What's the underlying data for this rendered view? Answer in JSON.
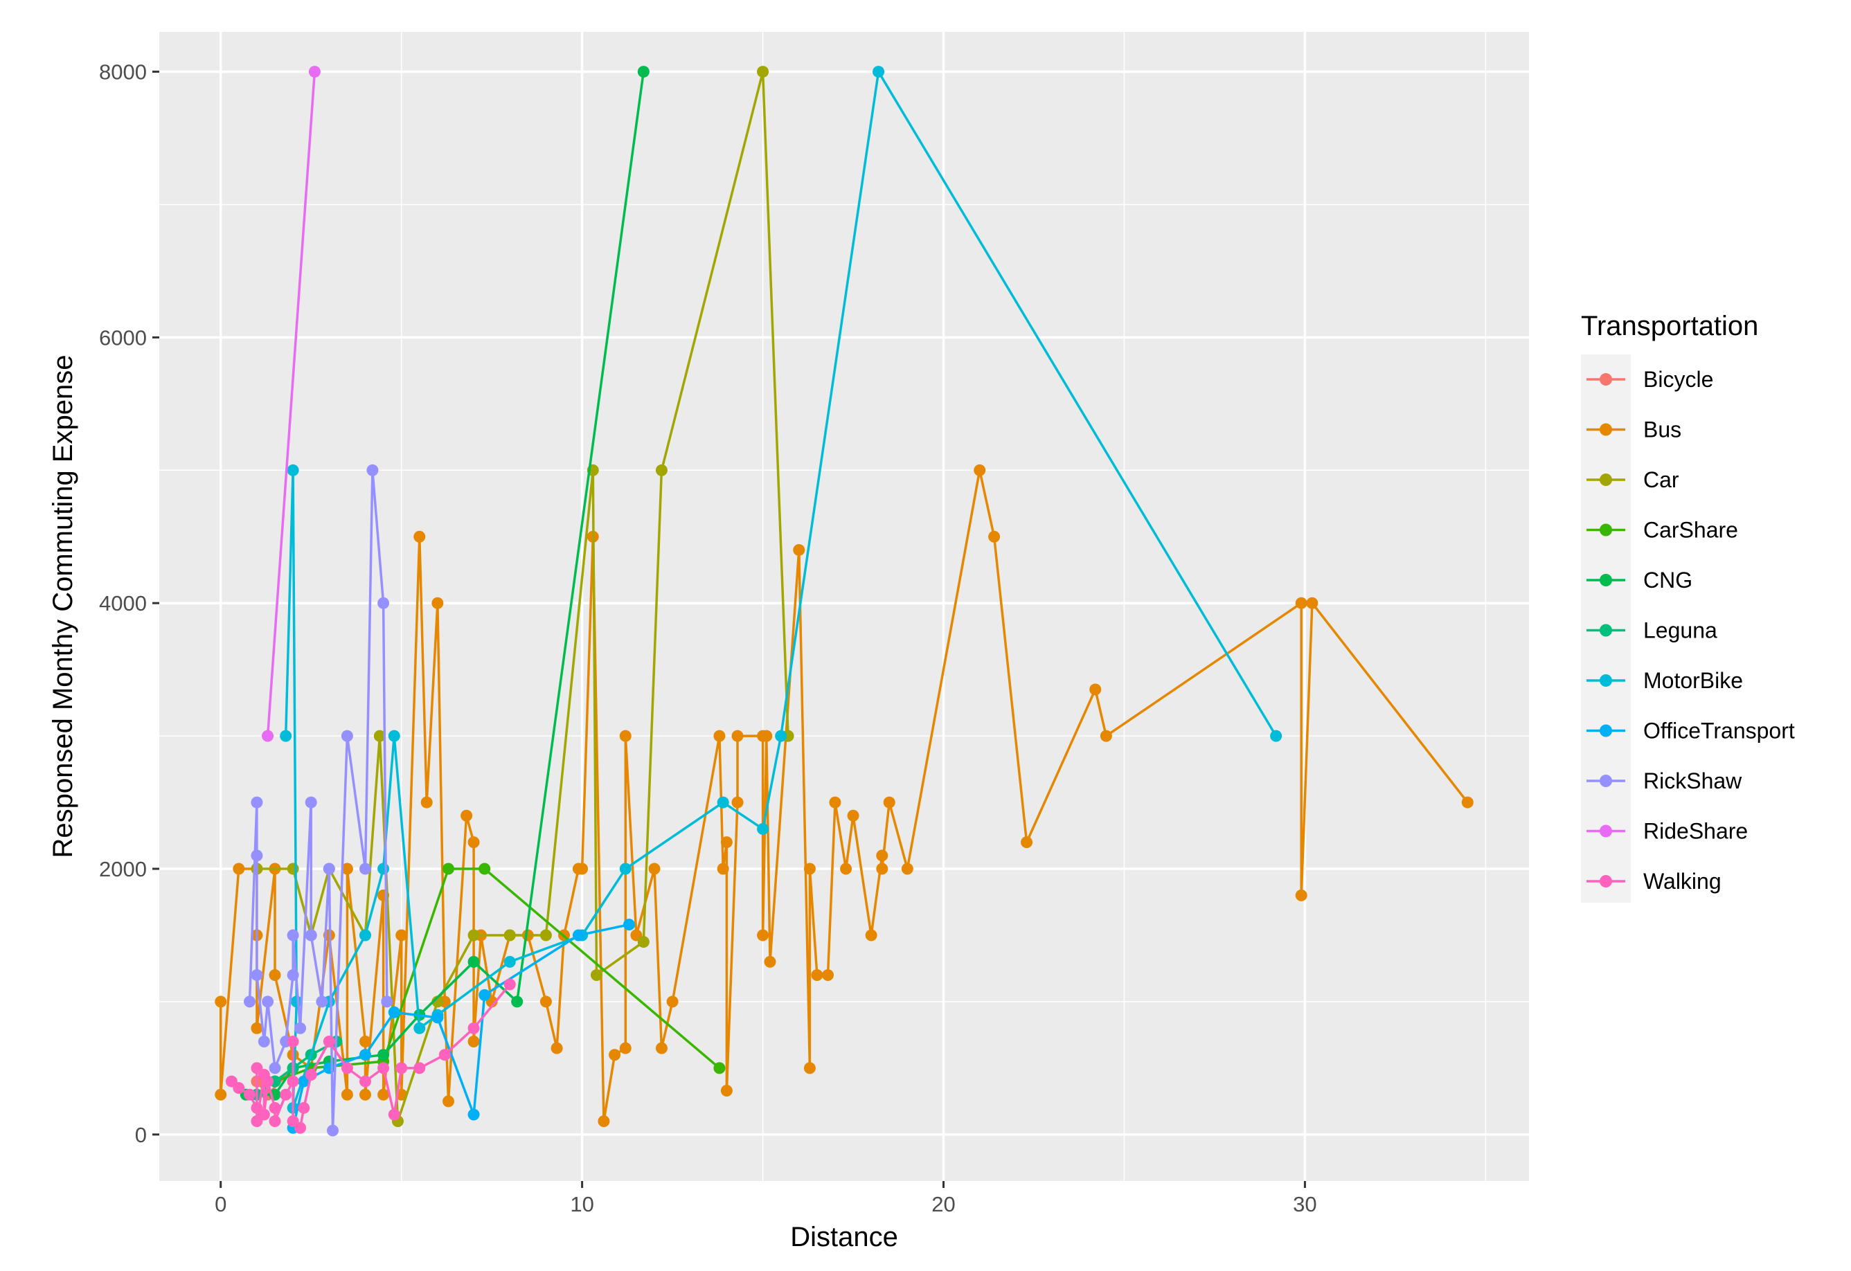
{
  "chart_data": {
    "type": "line",
    "title": "",
    "xlabel": "Distance",
    "ylabel": "Responsed Monthy Commuting Expense",
    "xlim": [
      -1.7,
      36.2
    ],
    "ylim": [
      -350,
      8300
    ],
    "x_ticks": [
      0,
      10,
      20,
      30
    ],
    "x_tick_labels": [
      "0",
      "10",
      "20",
      "30"
    ],
    "y_ticks": [
      0,
      2000,
      4000,
      6000,
      8000
    ],
    "y_tick_labels": [
      "0",
      "2000",
      "4000",
      "6000",
      "8000"
    ],
    "grid": true,
    "legend": {
      "title": "Transportation",
      "position": "right"
    },
    "series": [
      {
        "name": "Bicycle",
        "color": "#F8766D",
        "points": [
          [
            1.0,
            400
          ],
          [
            1.3,
            300
          ],
          [
            2.0,
            500
          ]
        ]
      },
      {
        "name": "Bus",
        "color": "#E58700",
        "points": [
          [
            0.0,
            1000
          ],
          [
            0.0,
            300
          ],
          [
            0.5,
            2000
          ],
          [
            1.0,
            2000
          ],
          [
            1.0,
            1500
          ],
          [
            1.0,
            800
          ],
          [
            1.5,
            2000
          ],
          [
            1.5,
            1200
          ],
          [
            2.0,
            600
          ],
          [
            2.5,
            500
          ],
          [
            3.0,
            1500
          ],
          [
            3.5,
            300
          ],
          [
            3.5,
            2000
          ],
          [
            4.0,
            700
          ],
          [
            4.0,
            300
          ],
          [
            4.5,
            1800
          ],
          [
            4.5,
            300
          ],
          [
            5.0,
            1500
          ],
          [
            5.0,
            300
          ],
          [
            5.5,
            4500
          ],
          [
            5.7,
            2500
          ],
          [
            6.0,
            4000
          ],
          [
            6.2,
            1000
          ],
          [
            6.3,
            250
          ],
          [
            6.8,
            2400
          ],
          [
            7.0,
            2200
          ],
          [
            7.0,
            700
          ],
          [
            7.2,
            1500
          ],
          [
            7.5,
            1000
          ],
          [
            8.0,
            1500
          ],
          [
            8.5,
            1500
          ],
          [
            9.0,
            1000
          ],
          [
            9.3,
            650
          ],
          [
            9.5,
            1500
          ],
          [
            9.9,
            2000
          ],
          [
            10.0,
            2000
          ],
          [
            10.3,
            4500
          ],
          [
            10.6,
            100
          ],
          [
            10.9,
            600
          ],
          [
            11.2,
            650
          ],
          [
            11.2,
            3000
          ],
          [
            11.5,
            1500
          ],
          [
            12.0,
            2000
          ],
          [
            12.2,
            650
          ],
          [
            12.5,
            1000
          ],
          [
            13.8,
            3000
          ],
          [
            13.9,
            2000
          ],
          [
            14.0,
            2200
          ],
          [
            14.0,
            330
          ],
          [
            14.3,
            2500
          ],
          [
            14.3,
            3000
          ],
          [
            15.0,
            3000
          ],
          [
            15.0,
            1500
          ],
          [
            15.1,
            3000
          ],
          [
            15.2,
            1300
          ],
          [
            16.0,
            4400
          ],
          [
            16.3,
            500
          ],
          [
            16.3,
            2000
          ],
          [
            16.5,
            1200
          ],
          [
            16.8,
            1200
          ],
          [
            17.0,
            2500
          ],
          [
            17.3,
            2000
          ],
          [
            17.5,
            2400
          ],
          [
            18.0,
            1500
          ],
          [
            18.3,
            2100
          ],
          [
            18.3,
            2000
          ],
          [
            18.5,
            2500
          ],
          [
            19.0,
            2000
          ],
          [
            21.0,
            5000
          ],
          [
            21.4,
            4500
          ],
          [
            22.3,
            2200
          ],
          [
            24.2,
            3350
          ],
          [
            24.5,
            3000
          ],
          [
            29.9,
            4000
          ],
          [
            29.9,
            1800
          ],
          [
            30.2,
            4000
          ],
          [
            34.5,
            2500
          ]
        ]
      },
      {
        "name": "Car",
        "color": "#A3A500",
        "points": [
          [
            1.0,
            2000
          ],
          [
            2.0,
            2000
          ],
          [
            2.5,
            1500
          ],
          [
            3.0,
            2000
          ],
          [
            4.0,
            1500
          ],
          [
            4.4,
            3000
          ],
          [
            4.9,
            100
          ],
          [
            6.0,
            1000
          ],
          [
            7.0,
            1500
          ],
          [
            8.0,
            1500
          ],
          [
            9.0,
            1500
          ],
          [
            10.3,
            5000
          ],
          [
            10.4,
            1200
          ],
          [
            11.7,
            1450
          ],
          [
            12.2,
            5000
          ],
          [
            15.0,
            8000
          ],
          [
            15.7,
            3000
          ]
        ]
      },
      {
        "name": "CarShare",
        "color": "#39B600",
        "points": [
          [
            1.5,
            400
          ],
          [
            2.5,
            500
          ],
          [
            4.5,
            550
          ],
          [
            6.3,
            2000
          ],
          [
            7.3,
            2000
          ],
          [
            13.8,
            500
          ]
        ]
      },
      {
        "name": "CNG",
        "color": "#00BB4E",
        "points": [
          [
            0.7,
            300
          ],
          [
            1.5,
            300
          ],
          [
            2.0,
            500
          ],
          [
            3.0,
            550
          ],
          [
            4.5,
            600
          ],
          [
            5.5,
            900
          ],
          [
            7.0,
            1300
          ],
          [
            8.2,
            1000
          ],
          [
            11.7,
            8000
          ]
        ]
      },
      {
        "name": "Leguna",
        "color": "#00BF7D",
        "points": [
          [
            1.0,
            300
          ],
          [
            1.5,
            400
          ],
          [
            2.0,
            500
          ],
          [
            2.5,
            600
          ],
          [
            3.2,
            700
          ]
        ]
      },
      {
        "name": "MotorBike",
        "color": "#00BCD8",
        "points": [
          [
            1.8,
            3000
          ],
          [
            2.0,
            5000
          ],
          [
            2.1,
            1000
          ],
          [
            2.0,
            200
          ],
          [
            3.0,
            1000
          ],
          [
            4.0,
            1500
          ],
          [
            4.5,
            2000
          ],
          [
            4.8,
            3000
          ],
          [
            5.5,
            800
          ],
          [
            6.0,
            900
          ],
          [
            8.0,
            1300
          ],
          [
            10.0,
            1500
          ],
          [
            11.2,
            2000
          ],
          [
            13.9,
            2500
          ],
          [
            15.0,
            2300
          ],
          [
            15.5,
            3000
          ],
          [
            18.2,
            8000
          ],
          [
            29.2,
            3000
          ]
        ]
      },
      {
        "name": "OfficeTransport",
        "color": "#00B0F6",
        "points": [
          [
            2.0,
            50
          ],
          [
            2.3,
            400
          ],
          [
            3.0,
            500
          ],
          [
            4.0,
            600
          ],
          [
            4.8,
            920
          ],
          [
            6.0,
            880
          ],
          [
            7.0,
            150
          ],
          [
            7.3,
            1050
          ],
          [
            9.9,
            1500
          ],
          [
            11.3,
            1580
          ]
        ]
      },
      {
        "name": "RickShaw",
        "color": "#9590FF",
        "points": [
          [
            0.8,
            1000
          ],
          [
            1.0,
            2500
          ],
          [
            1.0,
            2100
          ],
          [
            1.0,
            1200
          ],
          [
            1.2,
            700
          ],
          [
            1.3,
            1000
          ],
          [
            1.5,
            500
          ],
          [
            1.8,
            700
          ],
          [
            2.0,
            1200
          ],
          [
            2.0,
            1500
          ],
          [
            2.2,
            800
          ],
          [
            2.5,
            2500
          ],
          [
            2.5,
            1500
          ],
          [
            2.8,
            1000
          ],
          [
            3.0,
            2000
          ],
          [
            3.1,
            30
          ],
          [
            3.5,
            3000
          ],
          [
            4.0,
            2000
          ],
          [
            4.2,
            5000
          ],
          [
            4.5,
            4000
          ],
          [
            4.6,
            1000
          ]
        ]
      },
      {
        "name": "RideShare",
        "color": "#E76BF3",
        "points": [
          [
            1.3,
            3000
          ],
          [
            2.6,
            8000
          ]
        ]
      },
      {
        "name": "Walking",
        "color": "#FF62BC",
        "points": [
          [
            0.3,
            400
          ],
          [
            0.5,
            350
          ],
          [
            0.8,
            300
          ],
          [
            1.0,
            200
          ],
          [
            1.0,
            500
          ],
          [
            1.0,
            100
          ],
          [
            1.2,
            450
          ],
          [
            1.2,
            150
          ],
          [
            1.3,
            400
          ],
          [
            1.5,
            200
          ],
          [
            1.5,
            100
          ],
          [
            1.8,
            300
          ],
          [
            2.0,
            400
          ],
          [
            2.0,
            700
          ],
          [
            2.0,
            100
          ],
          [
            2.2,
            50
          ],
          [
            2.3,
            200
          ],
          [
            2.5,
            450
          ],
          [
            3.0,
            700
          ],
          [
            3.5,
            500
          ],
          [
            4.0,
            400
          ],
          [
            4.5,
            500
          ],
          [
            4.8,
            150
          ],
          [
            5.0,
            500
          ],
          [
            5.5,
            500
          ],
          [
            6.2,
            600
          ],
          [
            7.0,
            800
          ],
          [
            8.0,
            1130
          ]
        ]
      }
    ]
  }
}
